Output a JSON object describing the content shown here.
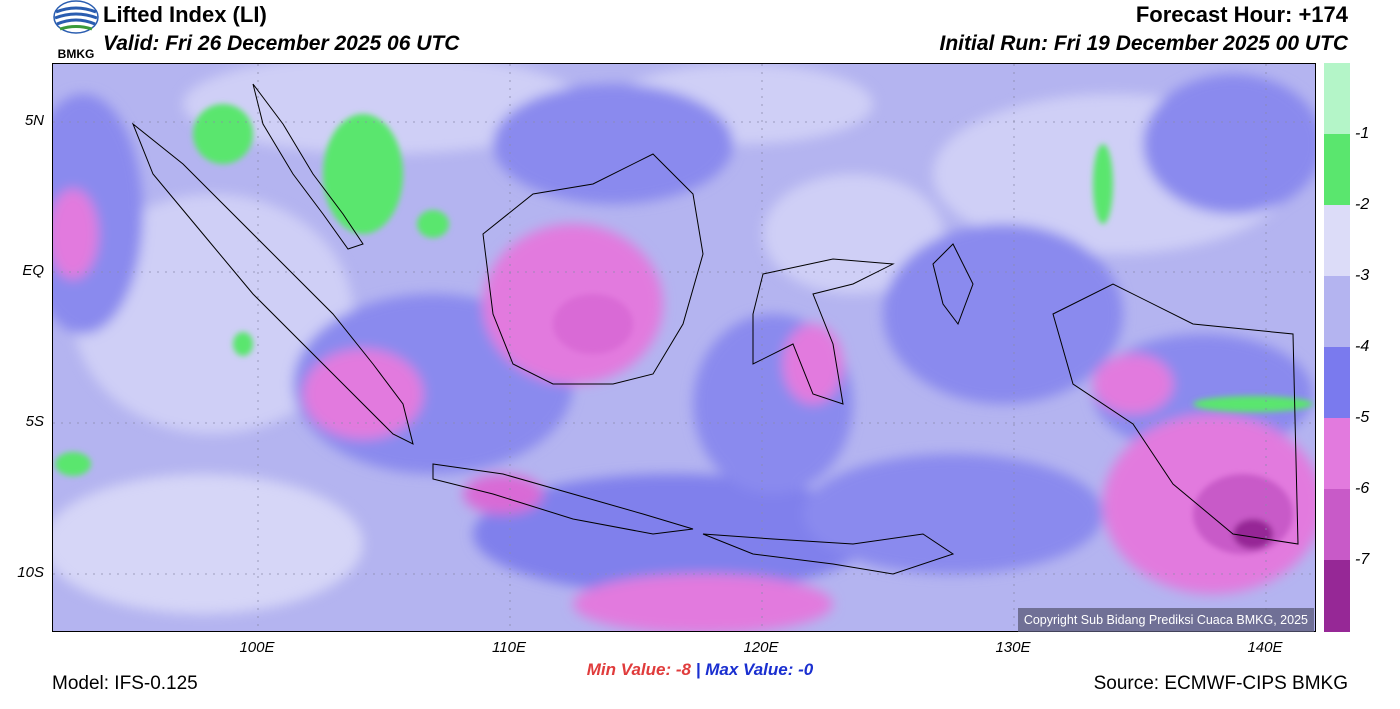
{
  "header": {
    "title": "Lifted Index (LI)",
    "valid": "Valid: Fri 26 December 2025 06 UTC",
    "forecast_hour": "Forecast Hour: +174",
    "initial_run": "Initial Run: Fri 19 December 2025 00 UTC"
  },
  "logo": {
    "text": "BMKG",
    "icon": "bmkg-logo-icon"
  },
  "map": {
    "lat_labels": [
      "5N",
      "EQ",
      "5S",
      "10S"
    ],
    "lon_labels": [
      "100E",
      "110E",
      "120E",
      "130E",
      "140E"
    ],
    "copyright": "Copyright Sub Bidang Prediksi Cuaca BMKG, 2025"
  },
  "legend": {
    "labels": [
      "-1",
      "-2",
      "-3",
      "-4",
      "-5",
      "-6",
      "-7"
    ],
    "colors": [
      "#b4f5c8",
      "#5ae66e",
      "#dcdcf8",
      "#b4b4f0",
      "#7a7aee",
      "#e27ade",
      "#c85ac8",
      "#962896"
    ]
  },
  "stats": {
    "min": "Min Value:  -8",
    "separator": "|",
    "max": "Max Value:  -0"
  },
  "footer": {
    "model": "Model: IFS-0.125",
    "source": "Source: ECMWF-CIPS BMKG"
  }
}
